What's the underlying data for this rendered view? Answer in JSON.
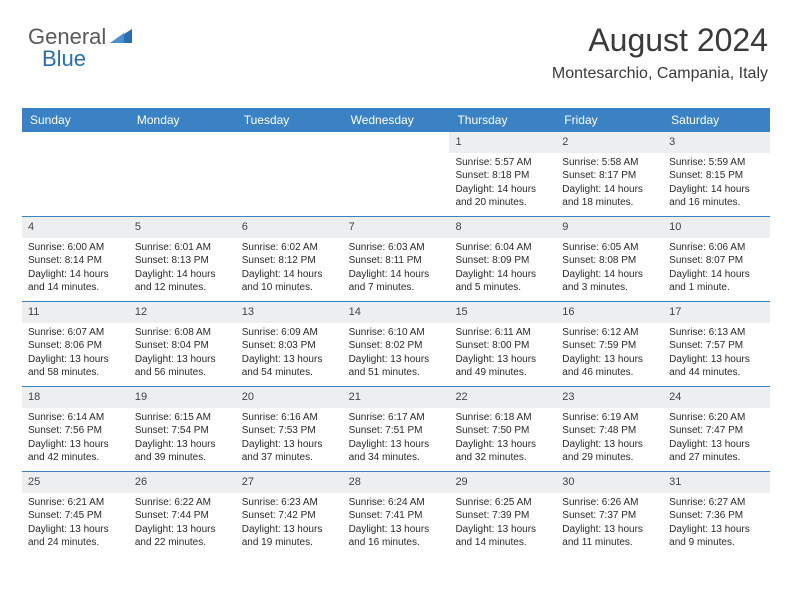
{
  "logo": {
    "text1": "General",
    "text2": "Blue",
    "icon_color": "#2a6db0"
  },
  "header": {
    "month": "August 2024",
    "location": "Montesarchio, Campania, Italy"
  },
  "colors": {
    "header_bg": "#3b82c4",
    "header_text": "#ffffff",
    "daynum_bg": "#eceef0",
    "border": "#3b82c4",
    "text": "#2a2a2a"
  },
  "day_names": [
    "Sunday",
    "Monday",
    "Tuesday",
    "Wednesday",
    "Thursday",
    "Friday",
    "Saturday"
  ],
  "weeks": [
    [
      {
        "n": "",
        "sr": "",
        "ss": "",
        "dl": ""
      },
      {
        "n": "",
        "sr": "",
        "ss": "",
        "dl": ""
      },
      {
        "n": "",
        "sr": "",
        "ss": "",
        "dl": ""
      },
      {
        "n": "",
        "sr": "",
        "ss": "",
        "dl": ""
      },
      {
        "n": "1",
        "sr": "Sunrise: 5:57 AM",
        "ss": "Sunset: 8:18 PM",
        "dl": "Daylight: 14 hours and 20 minutes."
      },
      {
        "n": "2",
        "sr": "Sunrise: 5:58 AM",
        "ss": "Sunset: 8:17 PM",
        "dl": "Daylight: 14 hours and 18 minutes."
      },
      {
        "n": "3",
        "sr": "Sunrise: 5:59 AM",
        "ss": "Sunset: 8:15 PM",
        "dl": "Daylight: 14 hours and 16 minutes."
      }
    ],
    [
      {
        "n": "4",
        "sr": "Sunrise: 6:00 AM",
        "ss": "Sunset: 8:14 PM",
        "dl": "Daylight: 14 hours and 14 minutes."
      },
      {
        "n": "5",
        "sr": "Sunrise: 6:01 AM",
        "ss": "Sunset: 8:13 PM",
        "dl": "Daylight: 14 hours and 12 minutes."
      },
      {
        "n": "6",
        "sr": "Sunrise: 6:02 AM",
        "ss": "Sunset: 8:12 PM",
        "dl": "Daylight: 14 hours and 10 minutes."
      },
      {
        "n": "7",
        "sr": "Sunrise: 6:03 AM",
        "ss": "Sunset: 8:11 PM",
        "dl": "Daylight: 14 hours and 7 minutes."
      },
      {
        "n": "8",
        "sr": "Sunrise: 6:04 AM",
        "ss": "Sunset: 8:09 PM",
        "dl": "Daylight: 14 hours and 5 minutes."
      },
      {
        "n": "9",
        "sr": "Sunrise: 6:05 AM",
        "ss": "Sunset: 8:08 PM",
        "dl": "Daylight: 14 hours and 3 minutes."
      },
      {
        "n": "10",
        "sr": "Sunrise: 6:06 AM",
        "ss": "Sunset: 8:07 PM",
        "dl": "Daylight: 14 hours and 1 minute."
      }
    ],
    [
      {
        "n": "11",
        "sr": "Sunrise: 6:07 AM",
        "ss": "Sunset: 8:06 PM",
        "dl": "Daylight: 13 hours and 58 minutes."
      },
      {
        "n": "12",
        "sr": "Sunrise: 6:08 AM",
        "ss": "Sunset: 8:04 PM",
        "dl": "Daylight: 13 hours and 56 minutes."
      },
      {
        "n": "13",
        "sr": "Sunrise: 6:09 AM",
        "ss": "Sunset: 8:03 PM",
        "dl": "Daylight: 13 hours and 54 minutes."
      },
      {
        "n": "14",
        "sr": "Sunrise: 6:10 AM",
        "ss": "Sunset: 8:02 PM",
        "dl": "Daylight: 13 hours and 51 minutes."
      },
      {
        "n": "15",
        "sr": "Sunrise: 6:11 AM",
        "ss": "Sunset: 8:00 PM",
        "dl": "Daylight: 13 hours and 49 minutes."
      },
      {
        "n": "16",
        "sr": "Sunrise: 6:12 AM",
        "ss": "Sunset: 7:59 PM",
        "dl": "Daylight: 13 hours and 46 minutes."
      },
      {
        "n": "17",
        "sr": "Sunrise: 6:13 AM",
        "ss": "Sunset: 7:57 PM",
        "dl": "Daylight: 13 hours and 44 minutes."
      }
    ],
    [
      {
        "n": "18",
        "sr": "Sunrise: 6:14 AM",
        "ss": "Sunset: 7:56 PM",
        "dl": "Daylight: 13 hours and 42 minutes."
      },
      {
        "n": "19",
        "sr": "Sunrise: 6:15 AM",
        "ss": "Sunset: 7:54 PM",
        "dl": "Daylight: 13 hours and 39 minutes."
      },
      {
        "n": "20",
        "sr": "Sunrise: 6:16 AM",
        "ss": "Sunset: 7:53 PM",
        "dl": "Daylight: 13 hours and 37 minutes."
      },
      {
        "n": "21",
        "sr": "Sunrise: 6:17 AM",
        "ss": "Sunset: 7:51 PM",
        "dl": "Daylight: 13 hours and 34 minutes."
      },
      {
        "n": "22",
        "sr": "Sunrise: 6:18 AM",
        "ss": "Sunset: 7:50 PM",
        "dl": "Daylight: 13 hours and 32 minutes."
      },
      {
        "n": "23",
        "sr": "Sunrise: 6:19 AM",
        "ss": "Sunset: 7:48 PM",
        "dl": "Daylight: 13 hours and 29 minutes."
      },
      {
        "n": "24",
        "sr": "Sunrise: 6:20 AM",
        "ss": "Sunset: 7:47 PM",
        "dl": "Daylight: 13 hours and 27 minutes."
      }
    ],
    [
      {
        "n": "25",
        "sr": "Sunrise: 6:21 AM",
        "ss": "Sunset: 7:45 PM",
        "dl": "Daylight: 13 hours and 24 minutes."
      },
      {
        "n": "26",
        "sr": "Sunrise: 6:22 AM",
        "ss": "Sunset: 7:44 PM",
        "dl": "Daylight: 13 hours and 22 minutes."
      },
      {
        "n": "27",
        "sr": "Sunrise: 6:23 AM",
        "ss": "Sunset: 7:42 PM",
        "dl": "Daylight: 13 hours and 19 minutes."
      },
      {
        "n": "28",
        "sr": "Sunrise: 6:24 AM",
        "ss": "Sunset: 7:41 PM",
        "dl": "Daylight: 13 hours and 16 minutes."
      },
      {
        "n": "29",
        "sr": "Sunrise: 6:25 AM",
        "ss": "Sunset: 7:39 PM",
        "dl": "Daylight: 13 hours and 14 minutes."
      },
      {
        "n": "30",
        "sr": "Sunrise: 6:26 AM",
        "ss": "Sunset: 7:37 PM",
        "dl": "Daylight: 13 hours and 11 minutes."
      },
      {
        "n": "31",
        "sr": "Sunrise: 6:27 AM",
        "ss": "Sunset: 7:36 PM",
        "dl": "Daylight: 13 hours and 9 minutes."
      }
    ]
  ]
}
